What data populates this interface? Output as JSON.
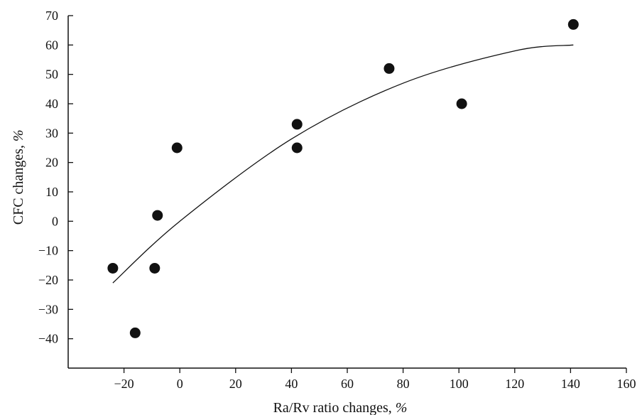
{
  "chart_data": {
    "type": "scatter",
    "title": "",
    "xlabel": "Ra/Rv ratio changes, %",
    "ylabel": "CFC changes, %",
    "xlim": [
      -40,
      160
    ],
    "ylim": [
      -50,
      70
    ],
    "xticks": [
      -20,
      0,
      20,
      40,
      60,
      80,
      100,
      120,
      140,
      160
    ],
    "xtick_labels": [
      "−20",
      "0",
      "20",
      "40",
      "60",
      "80",
      "100",
      "120",
      "140",
      "160"
    ],
    "yticks": [
      70,
      60,
      50,
      40,
      30,
      20,
      10,
      0,
      -10,
      -20,
      -30,
      -40
    ],
    "ytick_labels": [
      "70",
      "60",
      "50",
      "40",
      "30",
      "20",
      "10",
      "0",
      "−10",
      "−20",
      "−30",
      "−40"
    ],
    "grid": false,
    "legend": "none",
    "series": [
      {
        "points": [
          {
            "x": -24,
            "y": -16
          },
          {
            "x": -16,
            "y": -38
          },
          {
            "x": -9,
            "y": -16
          },
          {
            "x": -8,
            "y": 2
          },
          {
            "x": -1,
            "y": 25
          },
          {
            "x": 42,
            "y": 33
          },
          {
            "x": 42,
            "y": 25
          },
          {
            "x": 75,
            "y": 52
          },
          {
            "x": 101,
            "y": 40
          },
          {
            "x": 141,
            "y": 67
          }
        ],
        "color": "#111111"
      }
    ],
    "trendline": {
      "type": "quadratic",
      "x_range": [
        -24,
        141
      ],
      "points": [
        {
          "x": -24,
          "y": -21
        },
        {
          "x": 0,
          "y": 0
        },
        {
          "x": 40,
          "y": 28
        },
        {
          "x": 80,
          "y": 47
        },
        {
          "x": 120,
          "y": 58
        },
        {
          "x": 141,
          "y": 60
        }
      ],
      "color": "#111111"
    }
  }
}
